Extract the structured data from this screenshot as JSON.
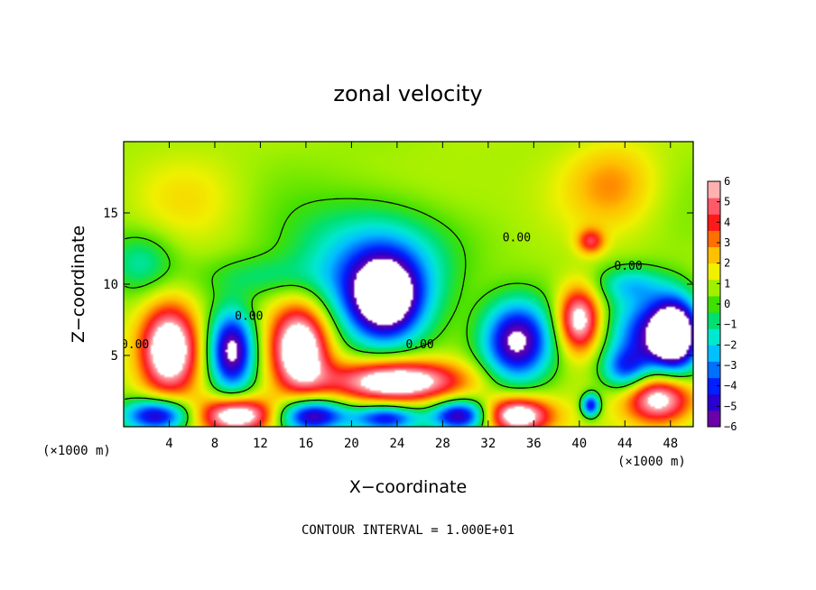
{
  "chart_data": {
    "type": "heatmap",
    "title": "zonal velocity",
    "xlabel": "X−coordinate",
    "ylabel": "Z−coordinate",
    "x_unit_left": "(×1000 m)",
    "x_unit_right": "(×1000 m)",
    "xlim": [
      0,
      50
    ],
    "ylim": [
      0,
      20
    ],
    "x_ticks": [
      4,
      8,
      12,
      16,
      20,
      24,
      28,
      32,
      36,
      40,
      44,
      48
    ],
    "y_ticks": [
      5,
      10,
      15
    ],
    "colorbar": {
      "range": [
        -6,
        6
      ],
      "ticks": [
        6,
        5,
        4,
        3,
        2,
        1,
        0,
        -1,
        -2,
        -3,
        -4,
        -5,
        -6
      ],
      "tick_labels": [
        "6",
        "5",
        "4",
        "3",
        "2",
        "1",
        "0",
        "−1",
        "−2",
        "−3",
        "−4",
        "−5",
        "−6"
      ],
      "colors": [
        "#6a00a8",
        "#2a00d0",
        "#0020ff",
        "#0070ff",
        "#00c0ff",
        "#00e8d0",
        "#00e070",
        "#40e000",
        "#a0f000",
        "#f0f000",
        "#ffc000",
        "#ff7000",
        "#ff1a1a",
        "#ff5a6a",
        "#ffb0b0"
      ]
    },
    "contour_labels": [
      {
        "text": "0.00",
        "x": 1.0,
        "z": 5.5
      },
      {
        "text": "0.00",
        "x": 11.0,
        "z": 7.5
      },
      {
        "text": "0.00",
        "x": 26.0,
        "z": 5.5
      },
      {
        "text": "0.00",
        "x": 34.5,
        "z": 13.0
      },
      {
        "text": "0.00",
        "x": 44.3,
        "z": 11.0
      }
    ],
    "features": [
      {
        "x": 23.0,
        "z": 9.0,
        "rx": 3.0,
        "rz": 2.8,
        "v": -7.0
      },
      {
        "x": 22.0,
        "z": 11.0,
        "rx": 6.5,
        "rz": 4.5,
        "v": -4.5
      },
      {
        "x": 4.0,
        "z": 5.5,
        "rx": 2.6,
        "rz": 3.2,
        "v": 7.5
      },
      {
        "x": 9.5,
        "z": 5.3,
        "rx": 2.0,
        "rz": 2.8,
        "v": -7.5
      },
      {
        "x": 15.5,
        "z": 5.5,
        "rx": 2.6,
        "rz": 3.2,
        "v": 7.5
      },
      {
        "x": 24.0,
        "z": 3.2,
        "rx": 6.0,
        "rz": 1.5,
        "v": 7.0
      },
      {
        "x": 34.5,
        "z": 6.0,
        "rx": 3.0,
        "rz": 2.8,
        "v": -7.5
      },
      {
        "x": 40.0,
        "z": 7.5,
        "rx": 1.9,
        "rz": 2.3,
        "v": 6.5
      },
      {
        "x": 46.5,
        "z": 6.5,
        "rx": 3.5,
        "rz": 2.8,
        "v": -6.0
      },
      {
        "x": 48.5,
        "z": 6.5,
        "rx": 2.0,
        "rz": 2.5,
        "v": -7.5
      },
      {
        "x": 47.0,
        "z": 2.0,
        "rx": 3.0,
        "rz": 1.8,
        "v": 6.5
      },
      {
        "x": 3.0,
        "z": 0.8,
        "rx": 3.0,
        "rz": 1.2,
        "v": -7.0
      },
      {
        "x": 10.0,
        "z": 0.8,
        "rx": 3.5,
        "rz": 1.3,
        "v": 7.0
      },
      {
        "x": 16.5,
        "z": 0.8,
        "rx": 3.0,
        "rz": 1.2,
        "v": -7.0
      },
      {
        "x": 23.0,
        "z": 0.6,
        "rx": 3.0,
        "rz": 1.0,
        "v": -6.0
      },
      {
        "x": 29.5,
        "z": 0.8,
        "rx": 2.5,
        "rz": 1.1,
        "v": -6.5
      },
      {
        "x": 34.5,
        "z": 0.8,
        "rx": 3.0,
        "rz": 1.3,
        "v": 7.0
      },
      {
        "x": 41.0,
        "z": 1.5,
        "rx": 0.8,
        "rz": 0.8,
        "v": -6.0
      },
      {
        "x": 41.0,
        "z": 13.0,
        "rx": 1.2,
        "rz": 0.9,
        "v": 3.5
      },
      {
        "x": 43.0,
        "z": 17.0,
        "rx": 4.0,
        "rz": 3.0,
        "v": 2.0
      },
      {
        "x": 1.5,
        "z": 11.5,
        "rx": 3.0,
        "rz": 2.2,
        "v": -2.2
      },
      {
        "x": 12.0,
        "z": 10.5,
        "rx": 5.0,
        "rz": 1.5,
        "v": -1.5
      },
      {
        "x": 30.0,
        "z": 16.0,
        "rx": 6.0,
        "rz": 3.0,
        "v": 0.6
      },
      {
        "x": 6.0,
        "z": 16.0,
        "rx": 5.0,
        "rz": 3.0,
        "v": 0.8
      },
      {
        "x": 44.0,
        "z": 4.0,
        "rx": 2.0,
        "rz": 1.5,
        "v": -4.0
      },
      {
        "x": 44.5,
        "z": 10.0,
        "rx": 3.0,
        "rz": 1.3,
        "v": -2.5
      }
    ]
  },
  "footer": {
    "contour_interval": "CONTOUR INTERVAL = 1.000E+01"
  }
}
